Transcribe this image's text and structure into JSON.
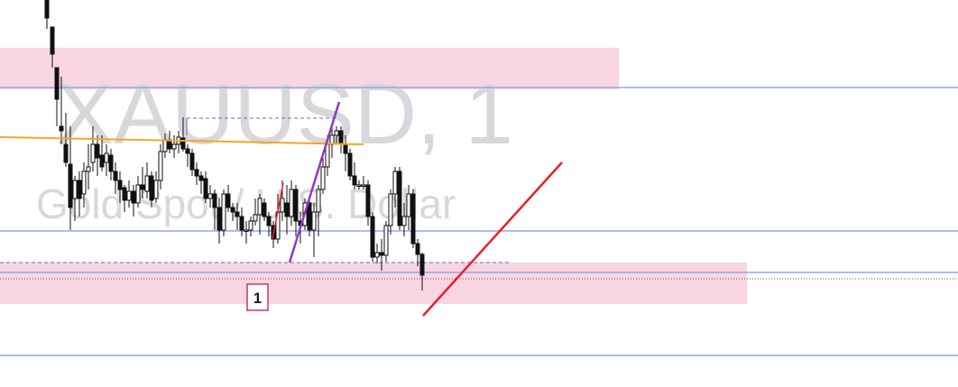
{
  "watermark": {
    "symbol": "XAUUSD, 1",
    "description": "Gold Spot / U.S. Dollar"
  },
  "label_1": "1",
  "colors": {
    "zone": "#f9d5e2",
    "level_line": "#8fa9e6",
    "ma_line": "#f5a623",
    "trend_line": "#e8202a",
    "swing_line": "#8e3bbd",
    "candle": "#111111",
    "label_border": "#d0306c",
    "watermark": "#d9d6dc"
  },
  "chart_data": {
    "type": "candlestick",
    "symbol": "XAUUSD",
    "timeframe": "1",
    "y_range": [
      0,
      429
    ],
    "candles": [
      [
        52,
        0,
        20,
        0,
        32
      ],
      [
        58,
        30,
        60,
        30,
        75
      ],
      [
        63,
        75,
        110,
        75,
        140
      ],
      [
        68,
        140,
        145,
        85,
        160
      ],
      [
        73,
        160,
        180,
        125,
        185
      ],
      [
        78,
        182,
        230,
        140,
        255
      ],
      [
        83,
        220,
        200,
        195,
        245
      ],
      [
        88,
        200,
        220,
        190,
        240
      ],
      [
        93,
        215,
        190,
        180,
        230
      ],
      [
        98,
        190,
        185,
        160,
        210
      ],
      [
        103,
        180,
        160,
        140,
        190
      ],
      [
        108,
        160,
        175,
        150,
        195
      ],
      [
        113,
        172,
        185,
        150,
        190
      ],
      [
        118,
        180,
        170,
        160,
        195
      ],
      [
        123,
        172,
        190,
        165,
        200
      ],
      [
        128,
        190,
        200,
        180,
        215
      ],
      [
        133,
        200,
        210,
        190,
        225
      ],
      [
        138,
        208,
        222,
        205,
        235
      ],
      [
        143,
        222,
        212,
        200,
        230
      ],
      [
        148,
        212,
        225,
        205,
        240
      ],
      [
        153,
        225,
        205,
        195,
        230
      ],
      [
        158,
        205,
        210,
        185,
        220
      ],
      [
        163,
        212,
        195,
        180,
        220
      ],
      [
        168,
        195,
        222,
        190,
        230
      ],
      [
        173,
        220,
        200,
        190,
        225
      ],
      [
        178,
        200,
        168,
        160,
        210
      ],
      [
        183,
        168,
        155,
        148,
        175
      ],
      [
        188,
        155,
        165,
        145,
        170
      ],
      [
        193,
        165,
        160,
        150,
        175
      ],
      [
        198,
        160,
        152,
        145,
        170
      ],
      [
        203,
        153,
        165,
        130,
        168
      ],
      [
        208,
        165,
        170,
        160,
        185
      ],
      [
        213,
        170,
        188,
        165,
        195
      ],
      [
        218,
        188,
        195,
        180,
        205
      ],
      [
        223,
        195,
        200,
        190,
        215
      ],
      [
        228,
        198,
        220,
        190,
        225
      ],
      [
        233,
        220,
        215,
        205,
        230
      ],
      [
        238,
        215,
        230,
        210,
        255
      ],
      [
        243,
        230,
        255,
        220,
        270
      ],
      [
        248,
        255,
        215,
        210,
        262
      ],
      [
        253,
        215,
        230,
        205,
        235
      ],
      [
        258,
        230,
        235,
        225,
        245
      ],
      [
        263,
        235,
        240,
        225,
        255
      ],
      [
        268,
        240,
        255,
        230,
        262
      ],
      [
        273,
        255,
        255,
        245,
        270
      ],
      [
        278,
        255,
        245,
        240,
        262
      ],
      [
        283,
        245,
        238,
        220,
        250
      ],
      [
        288,
        238,
        220,
        215,
        260
      ],
      [
        293,
        225,
        240,
        220,
        245
      ],
      [
        298,
        240,
        250,
        235,
        262
      ],
      [
        303,
        250,
        265,
        245,
        275
      ],
      [
        308,
        265,
        235,
        215,
        270
      ],
      [
        313,
        235,
        220,
        200,
        245
      ],
      [
        318,
        225,
        240,
        205,
        260
      ],
      [
        323,
        240,
        210,
        200,
        250
      ],
      [
        328,
        210,
        245,
        205,
        262
      ],
      [
        333,
        245,
        250,
        235,
        270
      ],
      [
        338,
        250,
        225,
        220,
        255
      ],
      [
        343,
        225,
        255,
        220,
        262
      ],
      [
        348,
        255,
        235,
        225,
        285
      ],
      [
        353,
        235,
        210,
        205,
        262
      ],
      [
        358,
        210,
        185,
        175,
        215
      ],
      [
        363,
        185,
        160,
        150,
        195
      ],
      [
        368,
        160,
        150,
        140,
        175
      ],
      [
        373,
        150,
        145,
        140,
        160
      ],
      [
        378,
        145,
        160,
        140,
        170
      ],
      [
        383,
        160,
        170,
        150,
        190
      ],
      [
        388,
        170,
        195,
        165,
        200
      ],
      [
        393,
        195,
        205,
        180,
        210
      ],
      [
        398,
        205,
        205,
        200,
        210
      ],
      [
        403,
        205,
        205,
        195,
        210
      ],
      [
        408,
        205,
        240,
        200,
        250
      ],
      [
        413,
        240,
        285,
        235,
        290
      ],
      [
        418,
        285,
        280,
        270,
        292
      ],
      [
        423,
        280,
        283,
        265,
        300
      ],
      [
        428,
        283,
        250,
        245,
        290
      ],
      [
        433,
        250,
        215,
        210,
        260
      ],
      [
        438,
        215,
        190,
        185,
        230
      ],
      [
        443,
        190,
        250,
        185,
        255
      ],
      [
        448,
        250,
        240,
        225,
        262
      ],
      [
        453,
        240,
        215,
        205,
        255
      ],
      [
        458,
        215,
        270,
        210,
        275
      ],
      [
        463,
        270,
        282,
        265,
        295
      ],
      [
        468,
        282,
        305,
        280,
        322
      ]
    ]
  }
}
